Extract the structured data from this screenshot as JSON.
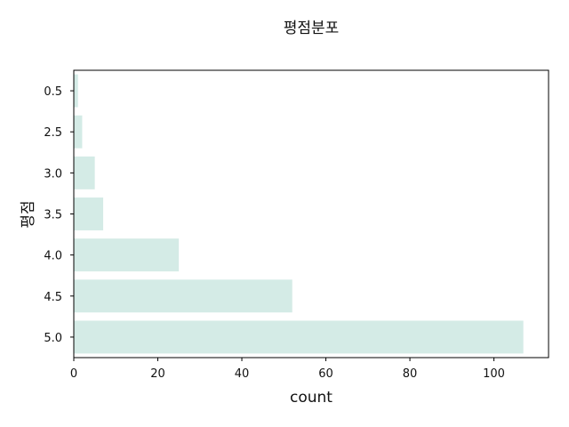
{
  "chart_data": {
    "type": "bar",
    "orientation": "horizontal",
    "title": "평점분포",
    "xlabel": "count",
    "ylabel": "평점",
    "categories": [
      "0.5",
      "2.5",
      "3.0",
      "3.5",
      "4.0",
      "4.5",
      "5.0"
    ],
    "values": [
      1,
      2,
      5,
      7,
      25,
      52,
      107
    ],
    "xlim": [
      0,
      113
    ],
    "xticks": [
      "0",
      "20",
      "40",
      "60",
      "80",
      "100"
    ],
    "grid": false,
    "bar_color": "#d4ebe6"
  }
}
